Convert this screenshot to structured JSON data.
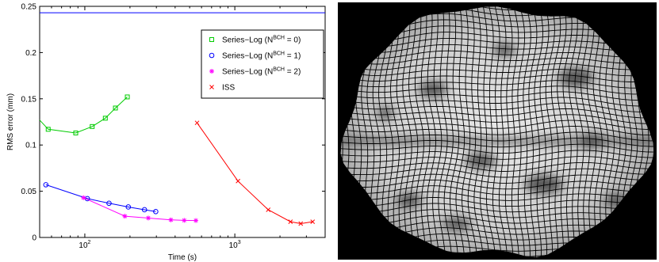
{
  "chart_data": {
    "type": "line",
    "xscale": "log",
    "xlim": [
      50,
      4000
    ],
    "ylim": [
      0,
      0.25
    ],
    "xlabel": "Time (s)",
    "ylabel": "RMS error (mm)",
    "xticks": [
      {
        "value": 100,
        "base": "10",
        "exp": "2"
      },
      {
        "value": 1000,
        "base": "10",
        "exp": "3"
      }
    ],
    "yticks": [
      {
        "value": 0,
        "label": "0"
      },
      {
        "value": 0.05,
        "label": "0.05"
      },
      {
        "value": 0.1,
        "label": "0.1"
      },
      {
        "value": 0.15,
        "label": "0.15"
      },
      {
        "value": 0.2,
        "label": "0.2"
      },
      {
        "value": 0.25,
        "label": "0.25"
      }
    ],
    "reference_line": {
      "y": 0.243,
      "color": "#0000ff"
    },
    "legend_position": "top-right",
    "series": [
      {
        "id": "s0",
        "marker": "square",
        "color": "#00cc00",
        "legend": {
          "base": "Series−Log (N",
          "sup": "BCH",
          "rest": " = 0)"
        },
        "x": [
          50,
          57,
          87,
          112,
          137,
          160,
          192
        ],
        "y": [
          0.127,
          0.117,
          0.113,
          0.12,
          0.129,
          0.14,
          0.152
        ]
      },
      {
        "id": "s1",
        "marker": "circle",
        "color": "#0000ff",
        "legend": {
          "base": "Series−Log (N",
          "sup": "BCH",
          "rest": " = 1)"
        },
        "x": [
          55,
          104,
          145,
          195,
          250,
          297
        ],
        "y": [
          0.057,
          0.042,
          0.037,
          0.033,
          0.03,
          0.028
        ]
      },
      {
        "id": "s2",
        "marker": "star",
        "color": "#ff00ff",
        "legend": {
          "base": "Series−Log (N",
          "sup": "BCH",
          "rest": " = 2)"
        },
        "x": [
          98,
          185,
          265,
          375,
          460,
          550
        ],
        "y": [
          0.043,
          0.023,
          0.021,
          0.019,
          0.0185,
          0.0183
        ],
        "marker_x": [
          98,
          185,
          265,
          375,
          460,
          550
        ],
        "marker_y": [
          0.043,
          0.023,
          0.021,
          0.019,
          0.0185,
          0.0183
        ]
      },
      {
        "id": "s3",
        "marker": "x",
        "color": "#ff0000",
        "legend": {
          "base": "ISS",
          "sup": "",
          "rest": ""
        },
        "x": [
          560,
          1050,
          1670,
          2350,
          2750,
          3300
        ],
        "y": [
          0.124,
          0.061,
          0.03,
          0.017,
          0.015,
          0.017
        ]
      }
    ]
  }
}
